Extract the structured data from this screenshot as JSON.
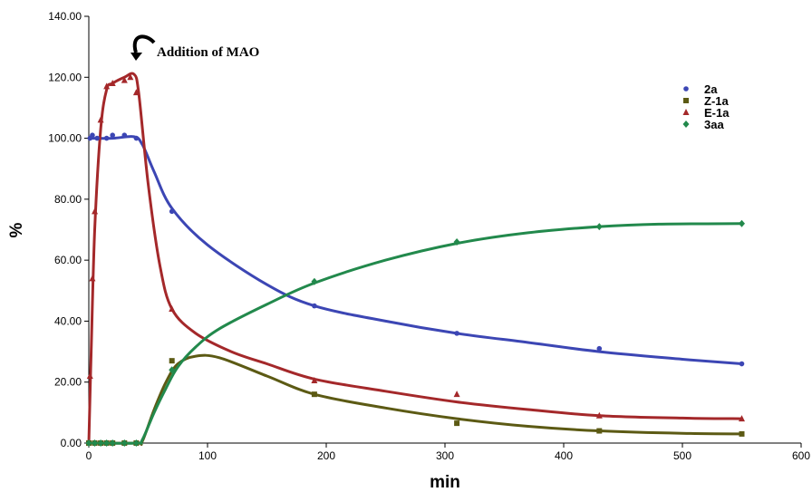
{
  "chart_data": {
    "type": "scatter",
    "title": "",
    "xlabel": "min",
    "ylabel": "%",
    "xlim": [
      0,
      600
    ],
    "ylim": [
      0,
      140
    ],
    "x_ticks": [
      "0",
      "100",
      "200",
      "300",
      "400",
      "500",
      "600"
    ],
    "y_ticks": [
      "0.00",
      "20.00",
      "40.00",
      "60.00",
      "80.00",
      "100.00",
      "120.00",
      "140.00"
    ],
    "grid": false,
    "legend_position": "top-right",
    "annotation": {
      "text": "Addition of MAO",
      "x": 40,
      "y": 121
    },
    "series": [
      {
        "name": "2a",
        "color": "#3c46b4",
        "marker": "circle",
        "points": [
          [
            1,
            100
          ],
          [
            3,
            101
          ],
          [
            7,
            100
          ],
          [
            15,
            100
          ],
          [
            20,
            101
          ],
          [
            30,
            101
          ],
          [
            40,
            100
          ],
          [
            70,
            76
          ],
          [
            190,
            45
          ],
          [
            310,
            36
          ],
          [
            430,
            31
          ],
          [
            550,
            26
          ]
        ],
        "curve": [
          [
            0,
            100
          ],
          [
            20,
            100
          ],
          [
            38,
            100.5
          ],
          [
            45,
            98
          ],
          [
            55,
            89
          ],
          [
            70,
            77
          ],
          [
            100,
            65
          ],
          [
            150,
            52
          ],
          [
            190,
            45
          ],
          [
            250,
            40
          ],
          [
            310,
            36
          ],
          [
            370,
            33
          ],
          [
            430,
            30
          ],
          [
            500,
            27.5
          ],
          [
            550,
            26
          ]
        ]
      },
      {
        "name": "Z-1a",
        "color": "#5c5a14",
        "marker": "square",
        "points": [
          [
            0,
            0
          ],
          [
            5,
            0
          ],
          [
            10,
            0
          ],
          [
            15,
            0
          ],
          [
            20,
            0
          ],
          [
            30,
            0
          ],
          [
            40,
            0
          ],
          [
            70,
            27
          ],
          [
            190,
            16
          ],
          [
            310,
            6.5
          ],
          [
            430,
            4
          ],
          [
            550,
            3
          ]
        ],
        "curve": [
          [
            0,
            0
          ],
          [
            40,
            0
          ],
          [
            45,
            0.5
          ],
          [
            55,
            11
          ],
          [
            65,
            20
          ],
          [
            75,
            26
          ],
          [
            90,
            28.5
          ],
          [
            110,
            28
          ],
          [
            150,
            22
          ],
          [
            190,
            16
          ],
          [
            250,
            11.5
          ],
          [
            310,
            8
          ],
          [
            370,
            5.5
          ],
          [
            430,
            4
          ],
          [
            500,
            3.2
          ],
          [
            550,
            3
          ]
        ]
      },
      {
        "name": "E-1a",
        "color": "#a4282a",
        "marker": "triangle",
        "points": [
          [
            1,
            22
          ],
          [
            3,
            54
          ],
          [
            5,
            76
          ],
          [
            10,
            106
          ],
          [
            15,
            117
          ],
          [
            20,
            118
          ],
          [
            30,
            119
          ],
          [
            35,
            120
          ],
          [
            40,
            115
          ],
          [
            70,
            44
          ],
          [
            190,
            20.5
          ],
          [
            310,
            16
          ],
          [
            430,
            9
          ],
          [
            550,
            8
          ]
        ],
        "curve": [
          [
            0,
            0
          ],
          [
            2,
            30
          ],
          [
            5,
            70
          ],
          [
            10,
            103
          ],
          [
            15,
            116
          ],
          [
            20,
            118
          ],
          [
            30,
            120
          ],
          [
            38,
            121
          ],
          [
            42,
            115
          ],
          [
            50,
            85
          ],
          [
            60,
            58
          ],
          [
            70,
            44
          ],
          [
            90,
            36
          ],
          [
            120,
            30
          ],
          [
            150,
            26
          ],
          [
            190,
            21
          ],
          [
            250,
            17
          ],
          [
            310,
            13.5
          ],
          [
            370,
            11
          ],
          [
            430,
            9
          ],
          [
            500,
            8.2
          ],
          [
            550,
            8
          ]
        ]
      },
      {
        "name": "3aa",
        "color": "#22894c",
        "marker": "diamond",
        "points": [
          [
            0,
            0
          ],
          [
            5,
            0
          ],
          [
            10,
            0
          ],
          [
            15,
            0
          ],
          [
            20,
            0
          ],
          [
            30,
            0
          ],
          [
            40,
            0
          ],
          [
            70,
            24
          ],
          [
            190,
            53
          ],
          [
            310,
            66
          ],
          [
            430,
            71
          ],
          [
            550,
            72
          ]
        ],
        "curve": [
          [
            0,
            0
          ],
          [
            40,
            0
          ],
          [
            45,
            1
          ],
          [
            55,
            10
          ],
          [
            65,
            18
          ],
          [
            75,
            25
          ],
          [
            90,
            31.5
          ],
          [
            110,
            37.5
          ],
          [
            150,
            45.5
          ],
          [
            190,
            52.5
          ],
          [
            250,
            60
          ],
          [
            310,
            65.5
          ],
          [
            370,
            69
          ],
          [
            430,
            71
          ],
          [
            480,
            71.8
          ],
          [
            550,
            72
          ]
        ]
      }
    ]
  }
}
